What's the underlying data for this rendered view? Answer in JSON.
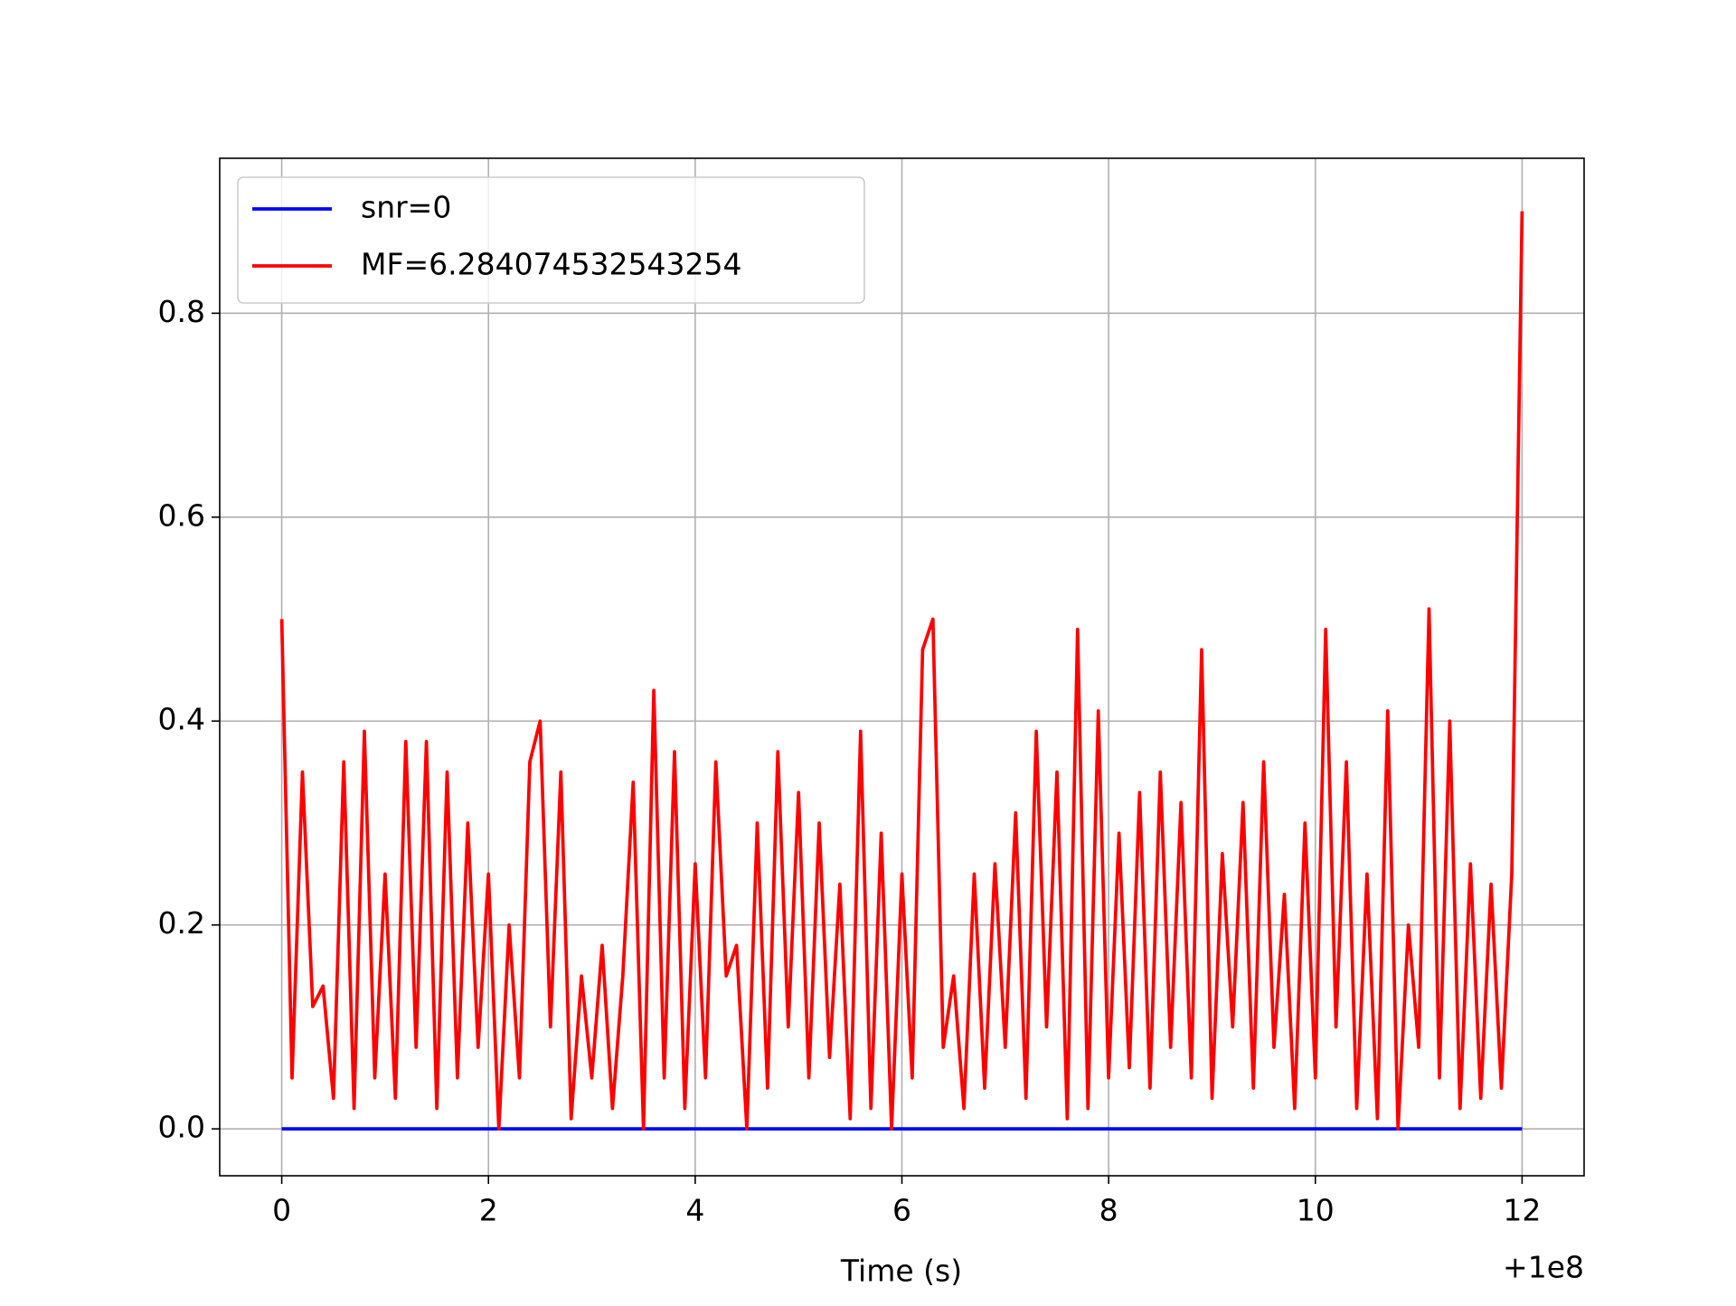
{
  "chart_data": {
    "type": "line",
    "xlabel": "Time (s)",
    "x_offset_label": "+1e8",
    "xlim": [
      -0.6,
      12.6
    ],
    "ylim": [
      -0.046,
      0.952
    ],
    "xticks": [
      0,
      2,
      4,
      6,
      8,
      10,
      12
    ],
    "yticks": [
      {
        "value": 0,
        "label": "0.0"
      },
      0.2,
      0.4,
      0.6,
      0.8
    ],
    "grid": true,
    "legend": "upper left",
    "series": [
      {
        "name": "snr=0",
        "color": "#0000ff",
        "x": [
          0,
          12
        ],
        "values": [
          0,
          0
        ]
      },
      {
        "name": "MF=6.284074532543254",
        "color": "#ff0000",
        "x": [
          0,
          0.1,
          0.2,
          0.3,
          0.4,
          0.5,
          0.6,
          0.7,
          0.8,
          0.9,
          1,
          1.1,
          1.2,
          1.3,
          1.4,
          1.5,
          1.6,
          1.7,
          1.8,
          1.9,
          2,
          2.1,
          2.2,
          2.3,
          2.4,
          2.5,
          2.6,
          2.7,
          2.8,
          2.9,
          3,
          3.1,
          3.2,
          3.3,
          3.4,
          3.5,
          3.6,
          3.7,
          3.8,
          3.9,
          4,
          4.1,
          4.2,
          4.3,
          4.4,
          4.5,
          4.6,
          4.7,
          4.8,
          4.9,
          5,
          5.1,
          5.2,
          5.3,
          5.4,
          5.5,
          5.6,
          5.7,
          5.8,
          5.9,
          6,
          6.1,
          6.2,
          6.3,
          6.4,
          6.5,
          6.6,
          6.7,
          6.8,
          6.9,
          7,
          7.1,
          7.2,
          7.3,
          7.4,
          7.5,
          7.6,
          7.7,
          7.8,
          7.9,
          8,
          8.1,
          8.2,
          8.3,
          8.4,
          8.5,
          8.6,
          8.7,
          8.8,
          8.9,
          9,
          9.1,
          9.2,
          9.3,
          9.4,
          9.5,
          9.6,
          9.7,
          9.8,
          9.9,
          10,
          10.1,
          10.2,
          10.3,
          10.4,
          10.5,
          10.6,
          10.7,
          10.8,
          10.9,
          11,
          11.1,
          11.2,
          11.3,
          11.4,
          11.5,
          11.6,
          11.7,
          11.8,
          11.9,
          12
        ],
        "values": [
          0.5,
          0.05,
          0.35,
          0.12,
          0.14,
          0.03,
          0.36,
          0.02,
          0.39,
          0.05,
          0.25,
          0.03,
          0.38,
          0.08,
          0.38,
          0.02,
          0.35,
          0.05,
          0.3,
          0.08,
          0.25,
          0,
          0.2,
          0.05,
          0.36,
          0.4,
          0.1,
          0.35,
          0.01,
          0.15,
          0.05,
          0.18,
          0.02,
          0.15,
          0.34,
          0,
          0.43,
          0.05,
          0.37,
          0.02,
          0.26,
          0.05,
          0.36,
          0.15,
          0.18,
          0,
          0.3,
          0.04,
          0.37,
          0.1,
          0.33,
          0.05,
          0.3,
          0.07,
          0.24,
          0.01,
          0.39,
          0.02,
          0.29,
          0,
          0.25,
          0.05,
          0.47,
          0.5,
          0.08,
          0.15,
          0.02,
          0.25,
          0.04,
          0.26,
          0.08,
          0.31,
          0.03,
          0.39,
          0.1,
          0.35,
          0.01,
          0.49,
          0.02,
          0.41,
          0.05,
          0.29,
          0.06,
          0.33,
          0.04,
          0.35,
          0.08,
          0.32,
          0.05,
          0.47,
          0.03,
          0.27,
          0.1,
          0.32,
          0.04,
          0.36,
          0.08,
          0.23,
          0.02,
          0.3,
          0.05,
          0.49,
          0.1,
          0.36,
          0.02,
          0.25,
          0.01,
          0.41,
          0,
          0.2,
          0.08,
          0.51,
          0.05,
          0.4,
          0.02,
          0.26,
          0.03,
          0.24,
          0.04,
          0.25,
          0.9
        ]
      }
    ]
  }
}
